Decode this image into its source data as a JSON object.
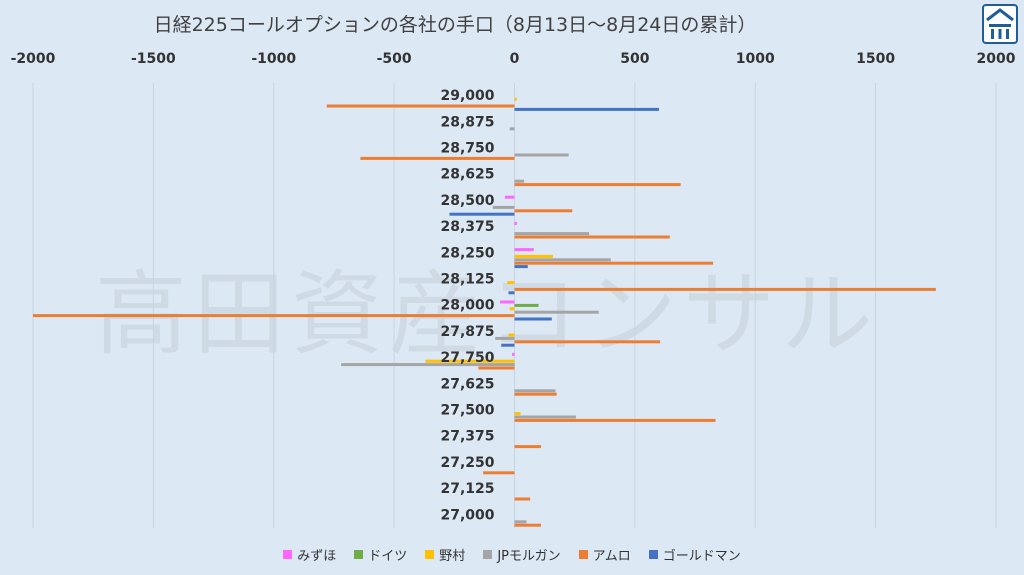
{
  "title": "日経225コールオプションの各社の手口（8月13日〜8月24日の累計）",
  "watermark": "高田資産コンサル",
  "logo_icon": "company-logo-icon",
  "chart_data": {
    "type": "bar",
    "orientation": "horizontal",
    "xlim": [
      -2000,
      2000
    ],
    "x_ticks": [
      -2000,
      -1500,
      -1000,
      -500,
      0,
      500,
      1000,
      1500,
      2000
    ],
    "x_tick_labels": [
      "-2000",
      "-1500",
      "-1000",
      "-500",
      "0",
      "500",
      "1000",
      "1500",
      "2000"
    ],
    "axis_position": "top",
    "grid": true,
    "legend_position": "bottom",
    "categories": [
      "29,000",
      "28,875",
      "28,750",
      "28,625",
      "28,500",
      "28,375",
      "28,250",
      "28,125",
      "28,000",
      "27,875",
      "27,750",
      "27,625",
      "27,500",
      "27,375",
      "27,250",
      "27,125",
      "27,000"
    ],
    "series": [
      {
        "name": "みずほ",
        "color": "#ff66ff",
        "values": [
          0,
          0,
          0,
          0,
          -40,
          10,
          80,
          0,
          -60,
          0,
          -10,
          0,
          0,
          0,
          0,
          0,
          0
        ]
      },
      {
        "name": "ドイツ",
        "color": "#70ad47",
        "values": [
          0,
          0,
          0,
          0,
          0,
          0,
          0,
          0,
          100,
          0,
          0,
          0,
          0,
          0,
          0,
          0,
          0
        ]
      },
      {
        "name": "野村",
        "color": "#ffc000",
        "values": [
          10,
          0,
          0,
          0,
          0,
          0,
          160,
          -30,
          -20,
          -25,
          -370,
          0,
          25,
          0,
          0,
          0,
          0
        ]
      },
      {
        "name": "JPモルガン",
        "color": "#a5a5a5",
        "values": [
          0,
          -20,
          225,
          40,
          -90,
          310,
          400,
          0,
          350,
          -80,
          -720,
          170,
          255,
          0,
          0,
          0,
          50
        ]
      },
      {
        "name": "アムロ",
        "color": "#ed7d31",
        "values": [
          -780,
          0,
          -640,
          690,
          240,
          645,
          825,
          1750,
          -2000,
          605,
          -150,
          175,
          835,
          110,
          -130,
          65,
          110
        ]
      },
      {
        "name": "ゴールドマン",
        "color": "#4472c4",
        "values": [
          600,
          0,
          0,
          0,
          -270,
          0,
          55,
          -25,
          155,
          -55,
          0,
          0,
          0,
          0,
          0,
          0,
          0
        ]
      }
    ]
  }
}
